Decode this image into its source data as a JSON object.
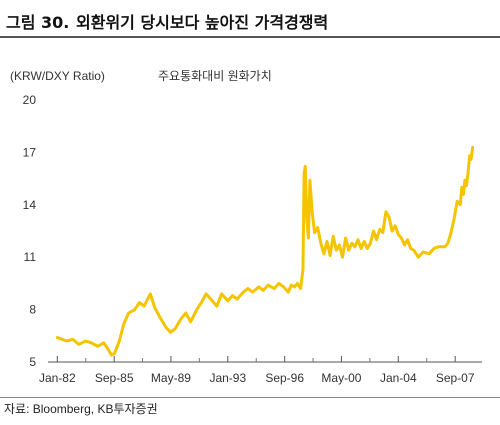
{
  "figure": {
    "number": "그림 30.",
    "title": "외환위기 당시보다 높아진 가격경쟁력"
  },
  "source": "자료: Bloomberg, KB투자증권",
  "chart_data": {
    "type": "line",
    "ylabel": "(KRW/DXY Ratio)",
    "series": [
      {
        "name": "주요통화대비 원화가치",
        "color": "#f5c400",
        "x": [
          1982.0,
          1982.3,
          1982.6,
          1983.0,
          1983.4,
          1983.8,
          1984.2,
          1984.6,
          1985.0,
          1985.3,
          1985.5,
          1985.7,
          1986.0,
          1986.3,
          1986.6,
          1987.0,
          1987.3,
          1987.6,
          1988.0,
          1988.3,
          1988.6,
          1989.0,
          1989.3,
          1989.6,
          1990.0,
          1990.3,
          1990.6,
          1991.0,
          1991.3,
          1991.6,
          1992.0,
          1992.3,
          1992.6,
          1993.0,
          1993.3,
          1993.6,
          1994.0,
          1994.3,
          1994.6,
          1995.0,
          1995.3,
          1995.6,
          1996.0,
          1996.3,
          1996.6,
          1996.9,
          1997.1,
          1997.3,
          1997.5,
          1997.7,
          1997.85,
          1997.92,
          1998.0,
          1998.1,
          1998.2,
          1998.3,
          1998.45,
          1998.6,
          1998.8,
          1999.0,
          1999.2,
          1999.4,
          1999.6,
          1999.8,
          2000.0,
          2000.2,
          2000.4,
          2000.6,
          2000.8,
          2001.0,
          2001.2,
          2001.4,
          2001.6,
          2001.8,
          2002.0,
          2002.2,
          2002.4,
          2002.6,
          2002.8,
          2003.0,
          2003.2,
          2003.4,
          2003.6,
          2003.8,
          2004.0,
          2004.2,
          2004.4,
          2004.6,
          2004.8,
          2005.0,
          2005.3,
          2005.6,
          2006.0,
          2006.3,
          2006.6,
          2007.0,
          2007.2,
          2007.4,
          2007.6,
          2007.8,
          2008.0,
          2008.1,
          2008.2,
          2008.3,
          2008.4,
          2008.5,
          2008.6,
          2008.7,
          2008.8
        ],
        "values": [
          6.4,
          6.3,
          6.2,
          6.3,
          6.0,
          6.2,
          6.1,
          5.9,
          6.1,
          5.7,
          5.4,
          5.5,
          6.2,
          7.2,
          7.8,
          8.0,
          8.4,
          8.2,
          8.9,
          8.1,
          7.6,
          7.0,
          6.7,
          6.9,
          7.5,
          7.8,
          7.3,
          8.0,
          8.4,
          8.9,
          8.5,
          8.2,
          8.9,
          8.5,
          8.8,
          8.6,
          9.0,
          9.2,
          9.0,
          9.3,
          9.1,
          9.4,
          9.2,
          9.5,
          9.3,
          9.0,
          9.4,
          9.3,
          9.5,
          9.2,
          10.3,
          15.8,
          16.2,
          13.2,
          12.1,
          15.4,
          13.5,
          12.4,
          12.7,
          11.8,
          11.2,
          11.9,
          11.1,
          12.2,
          11.4,
          11.7,
          11.0,
          12.1,
          11.4,
          11.8,
          11.6,
          12.0,
          11.5,
          11.9,
          11.5,
          11.8,
          12.5,
          12.0,
          12.6,
          12.4,
          13.6,
          13.3,
          12.5,
          12.8,
          12.3,
          12.1,
          11.7,
          12.0,
          11.5,
          11.4,
          11.0,
          11.3,
          11.2,
          11.5,
          11.6,
          11.6,
          11.8,
          12.4,
          13.2,
          14.2,
          14.0,
          15.0,
          14.6,
          15.4,
          15.1,
          15.8,
          16.8,
          16.6,
          17.3
        ]
      }
    ],
    "x_ticks": [
      {
        "value": 1982.0,
        "label": "Jan-82"
      },
      {
        "value": 1985.67,
        "label": "Sep-85"
      },
      {
        "value": 1989.33,
        "label": "May-89"
      },
      {
        "value": 1993.0,
        "label": "Jan-93"
      },
      {
        "value": 1996.67,
        "label": "Sep-96"
      },
      {
        "value": 2000.33,
        "label": "May-00"
      },
      {
        "value": 2004.0,
        "label": "Jan-04"
      },
      {
        "value": 2007.67,
        "label": "Sep-07"
      }
    ],
    "y_ticks": [
      5,
      8,
      11,
      14,
      17,
      20
    ],
    "xlim": [
      1981.4,
      2009.4
    ],
    "ylim": [
      5,
      20
    ],
    "grid": false,
    "legend": "top-center"
  }
}
